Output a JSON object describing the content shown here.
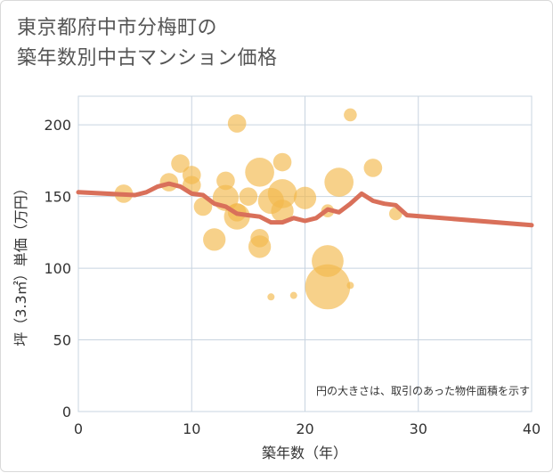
{
  "title": "東京都府中市分梅町の\n築年数別中古マンション価格",
  "chart_data": {
    "type": "scatter",
    "title": "東京都府中市分梅町の 築年数別中古マンション価格",
    "xlabel": "築年数（年）",
    "ylabel": "坪（3.3㎡）単価（万円）",
    "xlim": [
      0,
      40
    ],
    "ylim": [
      0,
      220
    ],
    "x_ticks": [
      "0",
      "10",
      "20",
      "30",
      "40"
    ],
    "y_ticks": [
      "0",
      "50",
      "100",
      "150",
      "200"
    ],
    "grid": true,
    "note": "円の大きさは、取引のあった物件面積を示す",
    "colors": {
      "bubble": "#f2b84b",
      "line": "#d9705a",
      "grid": "#c8d4e0"
    },
    "bubbles": [
      {
        "x": 4,
        "y": 152,
        "size": 2
      },
      {
        "x": 8,
        "y": 160,
        "size": 2
      },
      {
        "x": 9,
        "y": 173,
        "size": 2
      },
      {
        "x": 10,
        "y": 165,
        "size": 2
      },
      {
        "x": 10,
        "y": 158,
        "size": 2
      },
      {
        "x": 11,
        "y": 143,
        "size": 2
      },
      {
        "x": 12,
        "y": 120,
        "size": 3
      },
      {
        "x": 13,
        "y": 161,
        "size": 2
      },
      {
        "x": 13,
        "y": 149,
        "size": 4
      },
      {
        "x": 14,
        "y": 201,
        "size": 2
      },
      {
        "x": 14,
        "y": 139,
        "size": 2
      },
      {
        "x": 14,
        "y": 136,
        "size": 4
      },
      {
        "x": 15,
        "y": 150,
        "size": 2
      },
      {
        "x": 16,
        "y": 167,
        "size": 5
      },
      {
        "x": 16,
        "y": 121,
        "size": 2
      },
      {
        "x": 16,
        "y": 115,
        "size": 3
      },
      {
        "x": 17,
        "y": 80,
        "size": 0.3
      },
      {
        "x": 17,
        "y": 147,
        "size": 4
      },
      {
        "x": 18,
        "y": 174,
        "size": 2
      },
      {
        "x": 18,
        "y": 152,
        "size": 5
      },
      {
        "x": 18,
        "y": 140,
        "size": 3
      },
      {
        "x": 19,
        "y": 81,
        "size": 0.3
      },
      {
        "x": 20,
        "y": 149,
        "size": 3
      },
      {
        "x": 22,
        "y": 140,
        "size": 1
      },
      {
        "x": 22,
        "y": 105,
        "size": 6
      },
      {
        "x": 22,
        "y": 87,
        "size": 12
      },
      {
        "x": 23,
        "y": 160,
        "size": 5
      },
      {
        "x": 24,
        "y": 207,
        "size": 1
      },
      {
        "x": 24,
        "y": 88,
        "size": 0.3
      },
      {
        "x": 26,
        "y": 170,
        "size": 2
      },
      {
        "x": 28,
        "y": 138,
        "size": 1
      }
    ],
    "trend": {
      "x": [
        0,
        5,
        6,
        7,
        8,
        9,
        10,
        11,
        12,
        13,
        14,
        15,
        16,
        17,
        18,
        19,
        20,
        21,
        22,
        23,
        24,
        25,
        26,
        27,
        28,
        29,
        40
      ],
      "y": [
        153,
        151,
        153,
        157,
        159,
        157,
        152,
        151,
        145,
        143,
        138,
        137,
        136,
        132,
        132,
        135,
        133,
        135,
        141,
        139,
        145,
        152,
        147,
        145,
        144,
        137,
        130
      ]
    }
  }
}
